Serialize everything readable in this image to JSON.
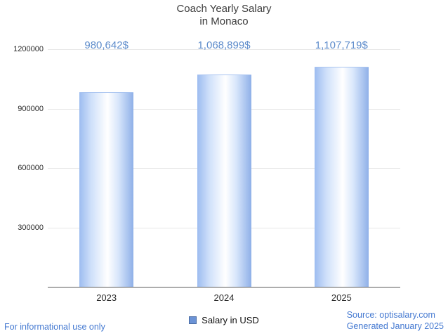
{
  "title": {
    "line1": "Coach Yearly Salary",
    "line2": "in Monaco"
  },
  "chart_data": {
    "type": "bar",
    "title": "Coach Yearly Salary in Monaco",
    "categories": [
      "2023",
      "2024",
      "2025"
    ],
    "values": [
      980642,
      1068899,
      1107719
    ],
    "value_labels": [
      "980,642$",
      "1,068,899$",
      "1,107,719$"
    ],
    "series_name": "Salary in USD",
    "xlabel": "",
    "ylabel": "",
    "ylim": [
      0,
      1200000
    ],
    "yticks": [
      300000,
      600000,
      900000,
      1200000
    ],
    "ytick_labels": [
      "300000",
      "600000",
      "900000",
      "1200000"
    ],
    "grid": true,
    "legend_position": "bottom"
  },
  "legend": {
    "label": "Salary in USD"
  },
  "footer": {
    "left": "For informational use only",
    "source": "Source: optisalary.com",
    "generated": "Generated January 2025"
  },
  "colors": {
    "bar_edge": "#9dbcf0",
    "bar_mid": "#ffffff",
    "value_label": "#5e8ccb",
    "footer_blue": "#4479d1",
    "grid": "#e7e7e7",
    "axis": "#5a5a5a"
  }
}
